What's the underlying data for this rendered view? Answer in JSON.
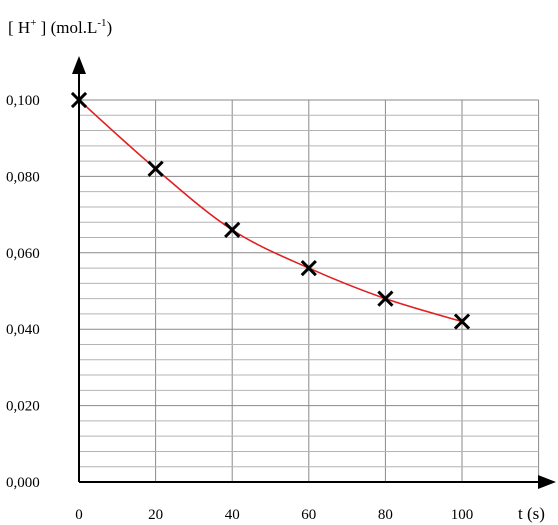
{
  "chart_data": {
    "type": "line",
    "ylabel": {
      "pre": "[ H",
      "sup1": "+",
      "mid": " ] (mol.L",
      "sup2": "-1",
      "post": ")"
    },
    "xlabel": "t (s)",
    "x": [
      0,
      20,
      40,
      60,
      80,
      100
    ],
    "y": [
      0.1,
      0.082,
      0.066,
      0.056,
      0.048,
      0.042
    ],
    "xlim": [
      0,
      100
    ],
    "ylim": [
      0,
      0.1
    ],
    "x_ticks": [
      0,
      20,
      40,
      60,
      80,
      100
    ],
    "x_tick_labels": [
      "0",
      "20",
      "40",
      "60",
      "80",
      "100"
    ],
    "y_ticks": [
      0,
      0.02,
      0.04,
      0.06,
      0.08,
      0.1
    ],
    "y_tick_labels": [
      "0,000",
      "0,020",
      "0,040",
      "0,060",
      "0,080",
      "0,100"
    ],
    "marker": "x",
    "grid": true,
    "colors": {
      "curve": "#e02020",
      "marker": "#000000",
      "axis": "#000000"
    }
  }
}
